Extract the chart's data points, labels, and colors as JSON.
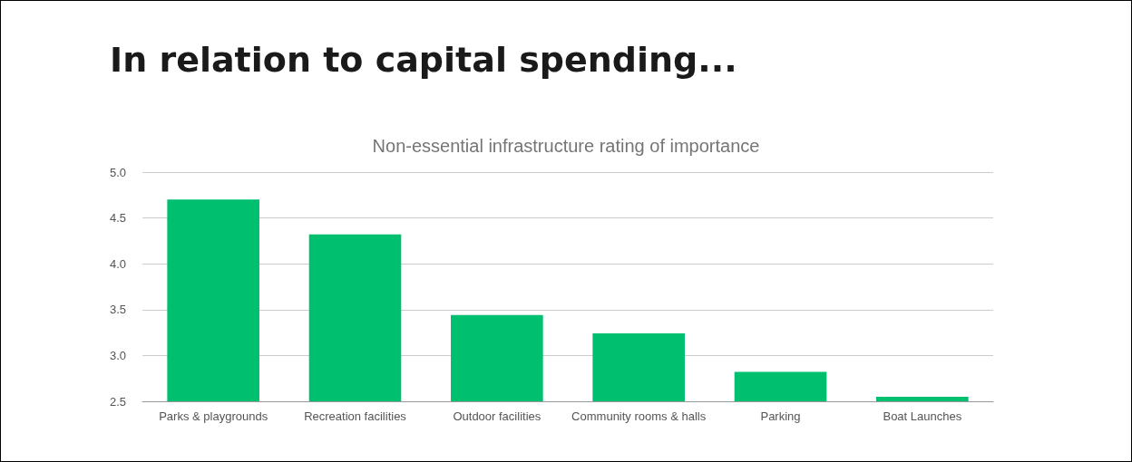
{
  "chart_data": {
    "type": "bar",
    "title": "In relation to capital spending...",
    "subtitle": "Non-essential infrastructure rating of importance",
    "categories": [
      "Parks & playgrounds",
      "Recreation facilities",
      "Outdoor facilities",
      "Community rooms & halls",
      "Parking",
      "Boat Launches"
    ],
    "values": [
      4.7,
      4.32,
      3.44,
      3.24,
      2.82,
      2.55
    ],
    "color": "#00bf6f",
    "ylim": [
      2.5,
      5.0
    ],
    "yticks": [
      {
        "value": 2.5,
        "label": "2.5"
      },
      {
        "value": 3,
        "label": "3.0"
      },
      {
        "value": 3.5,
        "label": "3.5"
      },
      {
        "value": 4,
        "label": "4.0"
      },
      {
        "value": 4.5,
        "label": "4.5"
      },
      {
        "value": 5,
        "label": "5.0"
      }
    ],
    "grid": "y"
  }
}
